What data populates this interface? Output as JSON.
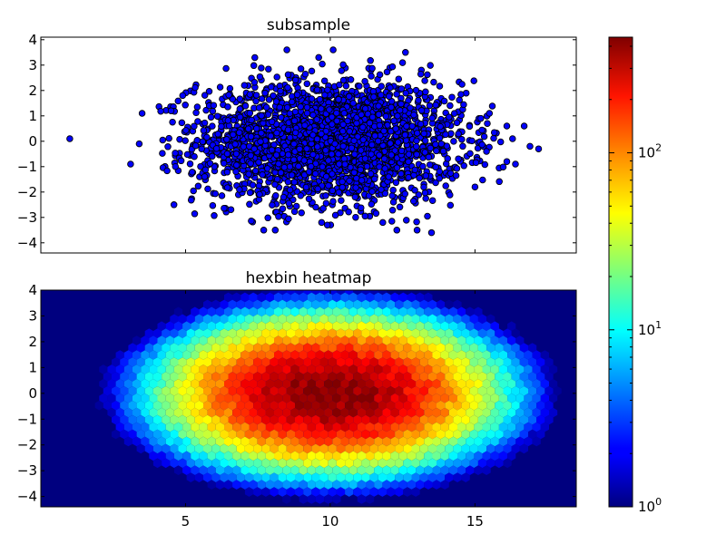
{
  "chart_data": [
    {
      "type": "scatter",
      "title": "subsample",
      "xlabel": "",
      "ylabel": "",
      "xlim": [
        0,
        18.5
      ],
      "ylim": [
        -4.4,
        4.1
      ],
      "xticks": [
        5,
        10,
        15
      ],
      "show_xticklabels": false,
      "yticks": [
        -4,
        -3,
        -2,
        -1,
        0,
        1,
        2,
        3,
        4
      ],
      "marker_color": "#0000ff",
      "edge_color": "#000000",
      "distribution": {
        "x_mean": 10,
        "x_std": 2.3,
        "y_mean": 0,
        "y_std": 1.2,
        "n": 2600
      },
      "outliers": [
        {
          "x": 1.0,
          "y": 0.1
        },
        {
          "x": 3.1,
          "y": -0.9
        },
        {
          "x": 3.4,
          "y": -0.1
        },
        {
          "x": 3.5,
          "y": 1.1
        },
        {
          "x": 17.2,
          "y": -0.3
        },
        {
          "x": 16.9,
          "y": -0.2
        },
        {
          "x": 16.7,
          "y": 0.6
        },
        {
          "x": 16.4,
          "y": -0.9
        },
        {
          "x": 16.3,
          "y": 0.1
        },
        {
          "x": 16.1,
          "y": -0.8
        },
        {
          "x": 16.1,
          "y": 0.6
        },
        {
          "x": 15.0,
          "y": -1.8
        },
        {
          "x": 15.2,
          "y": 0.9
        },
        {
          "x": 15.5,
          "y": 1.1
        },
        {
          "x": 8.5,
          "y": 3.6
        },
        {
          "x": 10.1,
          "y": 3.6
        },
        {
          "x": 12.6,
          "y": 3.5
        },
        {
          "x": 9.6,
          "y": 3.3
        },
        {
          "x": 13.0,
          "y": -3.5
        },
        {
          "x": 13.5,
          "y": -3.6
        },
        {
          "x": 7.7,
          "y": -3.5
        },
        {
          "x": 8.1,
          "y": -3.5
        },
        {
          "x": 12.3,
          "y": -3.5
        },
        {
          "x": 9.7,
          "y": -3.2
        },
        {
          "x": 9.9,
          "y": -3.3
        },
        {
          "x": 4.9,
          "y": 1.8
        },
        {
          "x": 4.5,
          "y": 1.2
        },
        {
          "x": 4.6,
          "y": -2.5
        }
      ]
    },
    {
      "type": "heatmap",
      "title": "hexbin heatmap",
      "xlabel": "",
      "ylabel": "",
      "xlim": [
        0,
        18.5
      ],
      "ylim": [
        -4.4,
        4.0
      ],
      "xticks": [
        5,
        10,
        15
      ],
      "xticklabels": [
        "5",
        "10",
        "15"
      ],
      "yticks": [
        -4,
        -3,
        -2,
        -1,
        0,
        1,
        2,
        3,
        4
      ],
      "background_color": "#00007f",
      "bins": "log",
      "colormap": "jet",
      "colorbar": {
        "scale": "log",
        "min": 1,
        "max": 450,
        "ticks": [
          1,
          10,
          100
        ],
        "tick_bases": [
          "10",
          "10",
          "10"
        ],
        "tick_exponents": [
          "0",
          "1",
          "2"
        ]
      },
      "distribution": {
        "x_mean": 10,
        "x_std": 2.3,
        "y_mean": 0,
        "y_std": 1.2,
        "peak_count": 450
      }
    }
  ]
}
